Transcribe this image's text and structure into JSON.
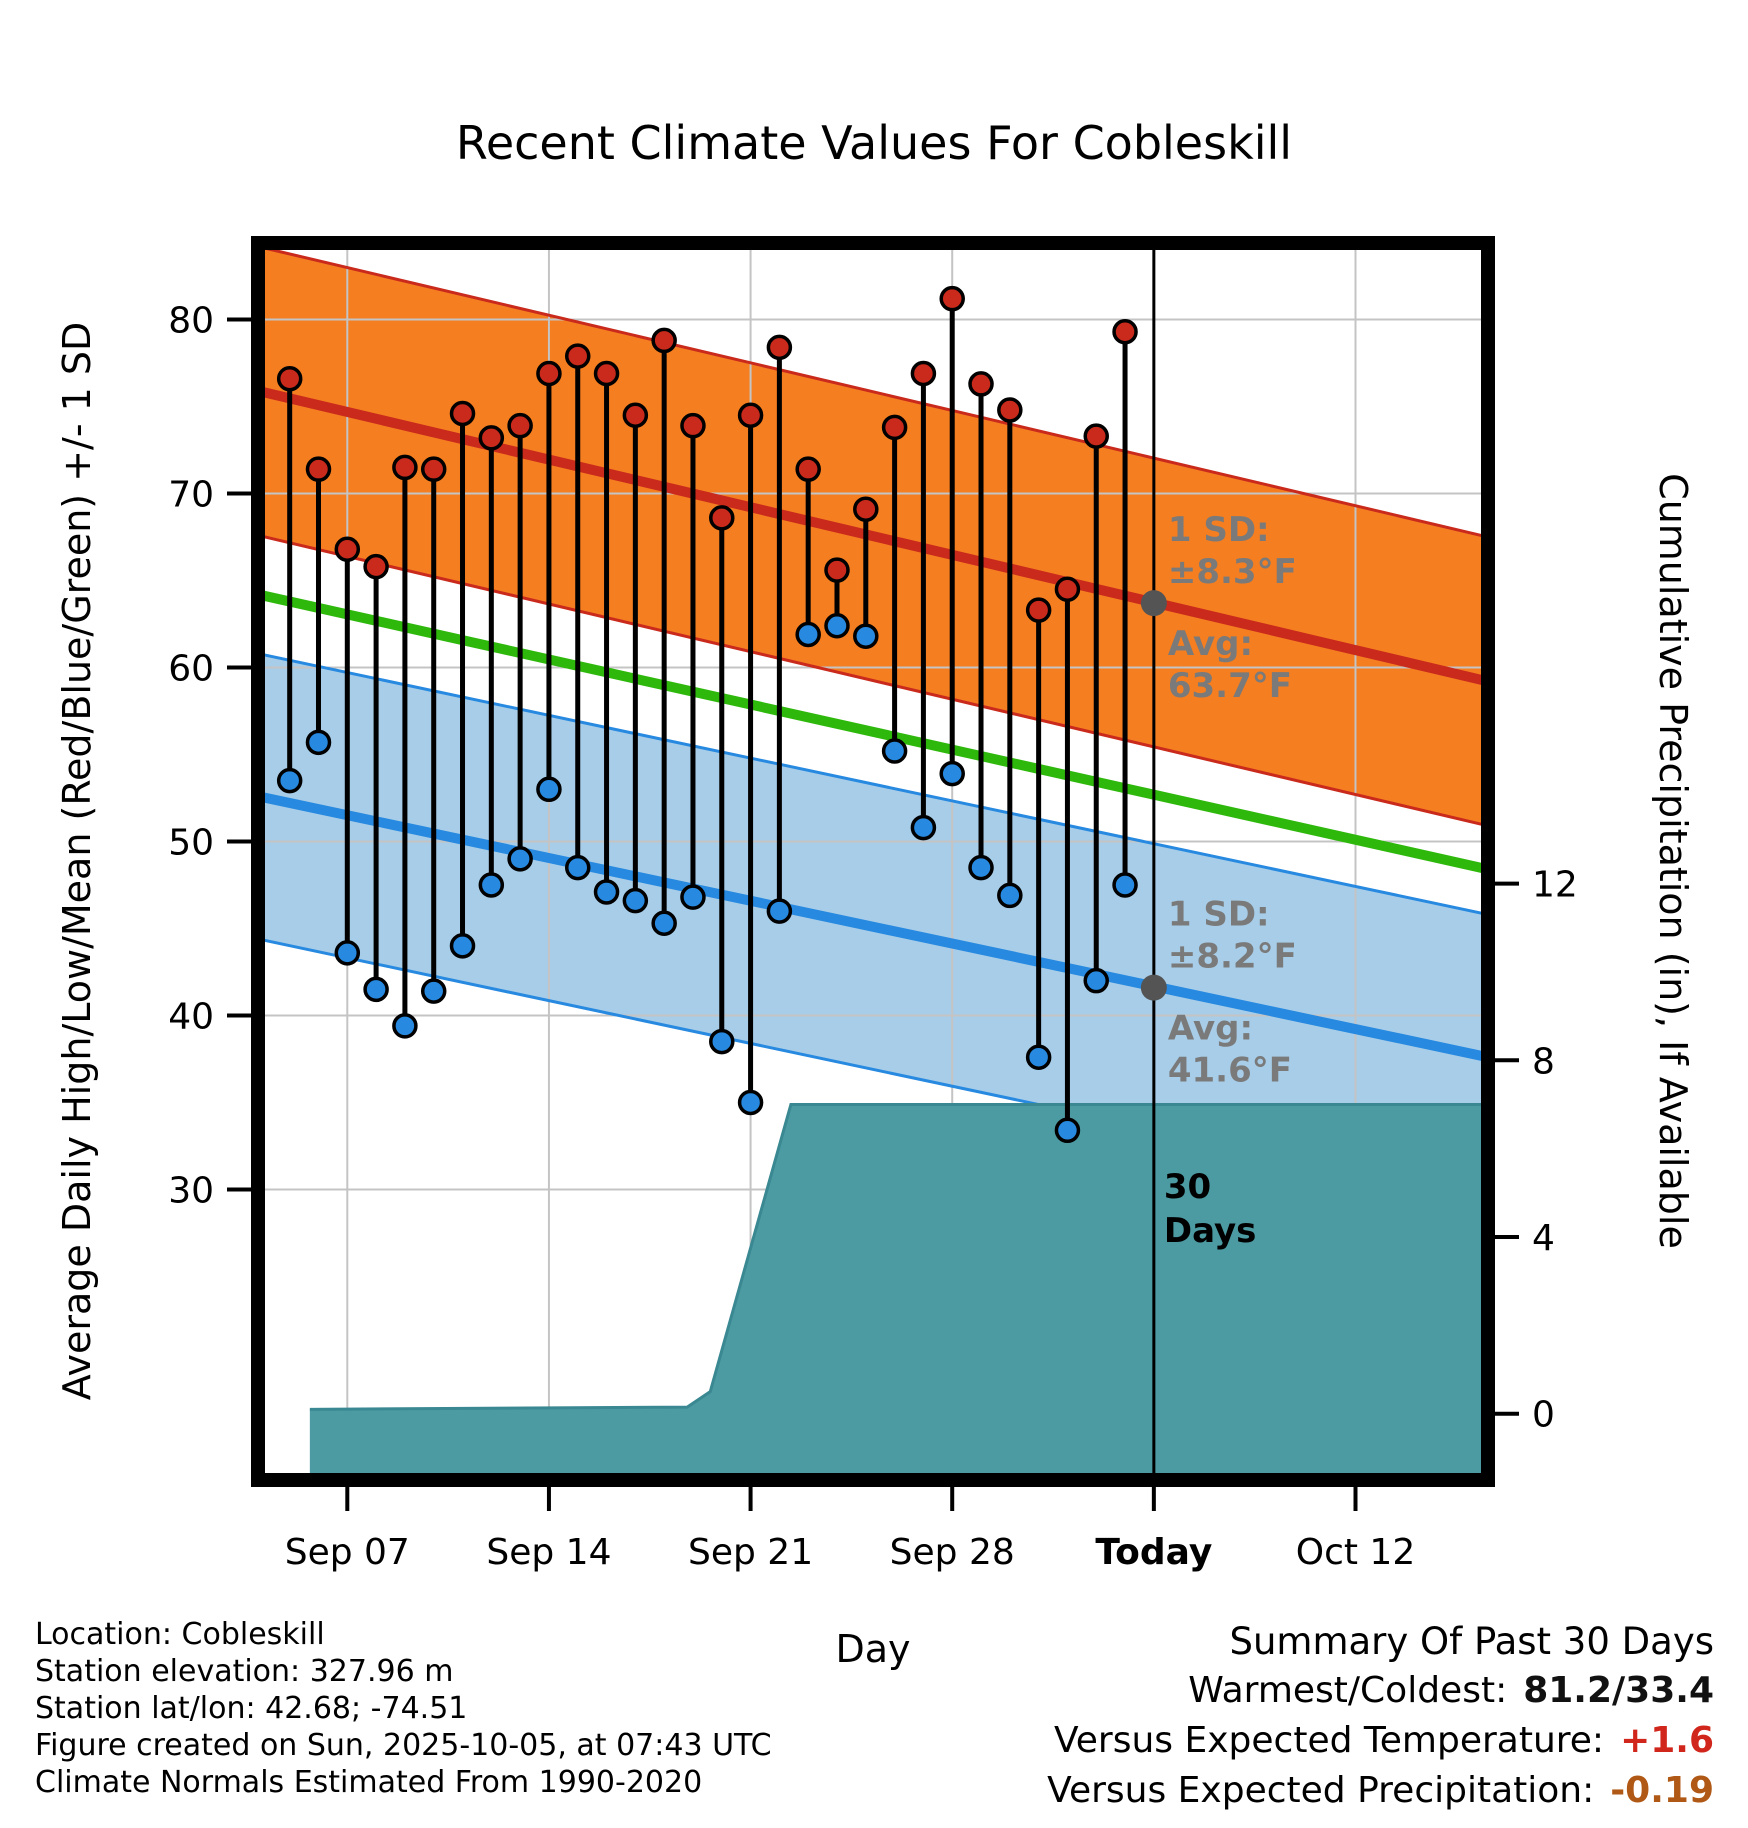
{
  "chart_data": {
    "type": "line",
    "title": "Recent Climate Values For Cobleskill",
    "x_label": "Day",
    "y_left_label": "Average Daily High/Low/Mean (Red/Blue/Green) +/- 1 SD",
    "y_right_label": "Cumulative Precipitation (in), If Available",
    "x_ticks": [
      {
        "label": "Sep 07",
        "day": 0
      },
      {
        "label": "Sep 14",
        "day": 7
      },
      {
        "label": "Sep 21",
        "day": 14
      },
      {
        "label": "Sep 28",
        "day": 21
      },
      {
        "label": "Today",
        "day": 28,
        "emphasis": true
      },
      {
        "label": "Oct 12",
        "day": 35
      }
    ],
    "y_temp_ticks": [
      30,
      40,
      50,
      60,
      70,
      80
    ],
    "y_precip_ticks": [
      0,
      4,
      8,
      12
    ],
    "layout": {
      "day_range": [
        -3.1,
        39.6
      ],
      "temp_range": [
        13.3,
        84.4
      ],
      "precip_range": [
        -1.5,
        26.5
      ],
      "grid": true,
      "legend": "none"
    },
    "normals": {
      "high": {
        "start": 75.9,
        "end": 59.2,
        "sd": 8.3
      },
      "low": {
        "start": 52.6,
        "end": 37.6,
        "sd": 8.2
      },
      "mean": {
        "start": 64.2,
        "end": 48.4
      }
    },
    "daily_first_day_offset": -2,
    "daily": [
      {
        "date": "Sep 05",
        "high": 76.6,
        "low": 53.5
      },
      {
        "date": "Sep 06",
        "high": 71.4,
        "low": 55.7
      },
      {
        "date": "Sep 07",
        "high": 66.8,
        "low": 43.6
      },
      {
        "date": "Sep 08",
        "high": 65.8,
        "low": 41.5
      },
      {
        "date": "Sep 09",
        "high": 71.5,
        "low": 39.4
      },
      {
        "date": "Sep 10",
        "high": 71.4,
        "low": 41.4
      },
      {
        "date": "Sep 11",
        "high": 74.6,
        "low": 44.0
      },
      {
        "date": "Sep 12",
        "high": 73.2,
        "low": 47.5
      },
      {
        "date": "Sep 13",
        "high": 73.9,
        "low": 49.0
      },
      {
        "date": "Sep 14",
        "high": 76.9,
        "low": 53.0
      },
      {
        "date": "Sep 15",
        "high": 77.9,
        "low": 48.5
      },
      {
        "date": "Sep 16",
        "high": 76.9,
        "low": 47.1
      },
      {
        "date": "Sep 17",
        "high": 74.5,
        "low": 46.6
      },
      {
        "date": "Sep 18",
        "high": 78.8,
        "low": 45.3
      },
      {
        "date": "Sep 19",
        "high": 73.9,
        "low": 46.8
      },
      {
        "date": "Sep 20",
        "high": 68.6,
        "low": 38.5
      },
      {
        "date": "Sep 21",
        "high": 74.5,
        "low": 35.0
      },
      {
        "date": "Sep 22",
        "high": 78.4,
        "low": 46.0
      },
      {
        "date": "Sep 23",
        "high": 71.4,
        "low": 61.9
      },
      {
        "date": "Sep 24",
        "high": 65.6,
        "low": 62.4
      },
      {
        "date": "Sep 25",
        "high": 69.1,
        "low": 61.8
      },
      {
        "date": "Sep 26",
        "high": 73.8,
        "low": 55.2
      },
      {
        "date": "Sep 27",
        "high": 76.9,
        "low": 50.8
      },
      {
        "date": "Sep 28",
        "high": 81.2,
        "low": 53.9
      },
      {
        "date": "Sep 29",
        "high": 76.3,
        "low": 48.5
      },
      {
        "date": "Sep 30",
        "high": 74.8,
        "low": 46.9
      },
      {
        "date": "Oct 01",
        "high": 63.3,
        "low": 37.6
      },
      {
        "date": "Oct 02",
        "high": 64.5,
        "low": 33.4
      },
      {
        "date": "Oct 03",
        "high": 73.3,
        "low": 42.0
      },
      {
        "date": "Oct 04",
        "high": 79.3,
        "low": 47.5
      }
    ],
    "precip_cumulative": {
      "points": [
        {
          "day": -1.3,
          "value": 0.1
        },
        {
          "day": 11.8,
          "value": 0.15
        },
        {
          "day": 12.6,
          "value": 0.5
        },
        {
          "day": 15.4,
          "value": 7.0
        },
        {
          "day": 39.6,
          "value": 7.0
        }
      ]
    },
    "annotations": {
      "today_day": 28,
      "high_stats": {
        "sd_line1": "1 SD:",
        "sd_line2": "±8.3°F",
        "avg_line1": "Avg:",
        "avg_line2": "63.7°F",
        "marker_temp": 63.7
      },
      "low_stats": {
        "sd_line1": "1 SD:",
        "sd_line2": "±8.2°F",
        "avg_line1": "Avg:",
        "avg_line2": "41.6°F",
        "marker_temp": 41.6
      },
      "period_label_line1": "30",
      "period_label_line2": "Days"
    }
  },
  "colors": {
    "high_band": "#f57e20",
    "high_line": "#c92a1c",
    "low_band": "#a7cde8",
    "low_line": "#2789e0",
    "mean_line": "#2eb80c",
    "precip_fill": "#4c9aa2",
    "precip_edge": "#3a8891",
    "grid": "#c4c4c4",
    "stat_text": "#7a7a7a",
    "marker": "#545454"
  },
  "footer": {
    "lines": [
      "Location: Cobleskill",
      "Station elevation: 327.96 m",
      "Station lat/lon: 42.68; -74.51",
      "Figure created on Sun, 2025-10-05, at 07:43 UTC",
      "Climate Normals Estimated From 1990-2020"
    ]
  },
  "summary": {
    "title": "Summary Of Past 30 Days",
    "rows": [
      {
        "label": "Warmest/Coldest:",
        "value": "81.2/33.4",
        "value_color": "#111111"
      },
      {
        "label": "Versus Expected Temperature:",
        "value": "+1.6",
        "value_color": "#d1261b"
      },
      {
        "label": "Versus Expected Precipitation:",
        "value": "-0.19",
        "value_color": "#b05815"
      }
    ]
  }
}
